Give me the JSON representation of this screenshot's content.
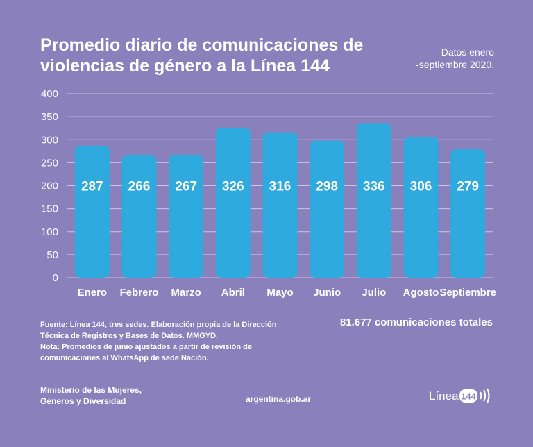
{
  "header": {
    "title_line1": "Promedio diario de comunicaciones de",
    "title_line2": "violencias de género a la Línea 144",
    "period_line1": "Datos enero",
    "period_line2": "-septiembre 2020."
  },
  "chart_data": {
    "type": "bar",
    "categories": [
      "Enero",
      "Febrero",
      "Marzo",
      "Abril",
      "Mayo",
      "Junio",
      "Julio",
      "Agosto",
      "Septiembre"
    ],
    "values": [
      287,
      266,
      267,
      326,
      316,
      298,
      336,
      306,
      279
    ],
    "yticks": [
      0,
      50,
      100,
      150,
      200,
      250,
      300,
      350,
      400
    ],
    "ylim": [
      0,
      400
    ],
    "grid": true,
    "bar_color": "#2eaadf",
    "title": "",
    "xlabel": "",
    "ylabel": ""
  },
  "footer": {
    "source_line1": "Fuente: Línea 144, tres sedes. Elaboración propia de la Dirección",
    "source_line2": "Técnica de Registros y Bases de Datos. MMGYD.",
    "note_line1": "Nota: Promedios de junio ajustados a partir de revisión de",
    "note_line2": "comunicaciones al WhatsApp de sede Nación.",
    "total": "81.677 comunicaciones totales",
    "ministry_line1": "Ministerio de las Mujeres,",
    "ministry_line2": "Géneros y Diversidad",
    "site": "argentina.gob.ar",
    "logo_text": "Línea",
    "logo_number": "144"
  },
  "colors": {
    "background": "#8a80bc",
    "bar": "#2eaadf",
    "text": "#ffffff"
  }
}
